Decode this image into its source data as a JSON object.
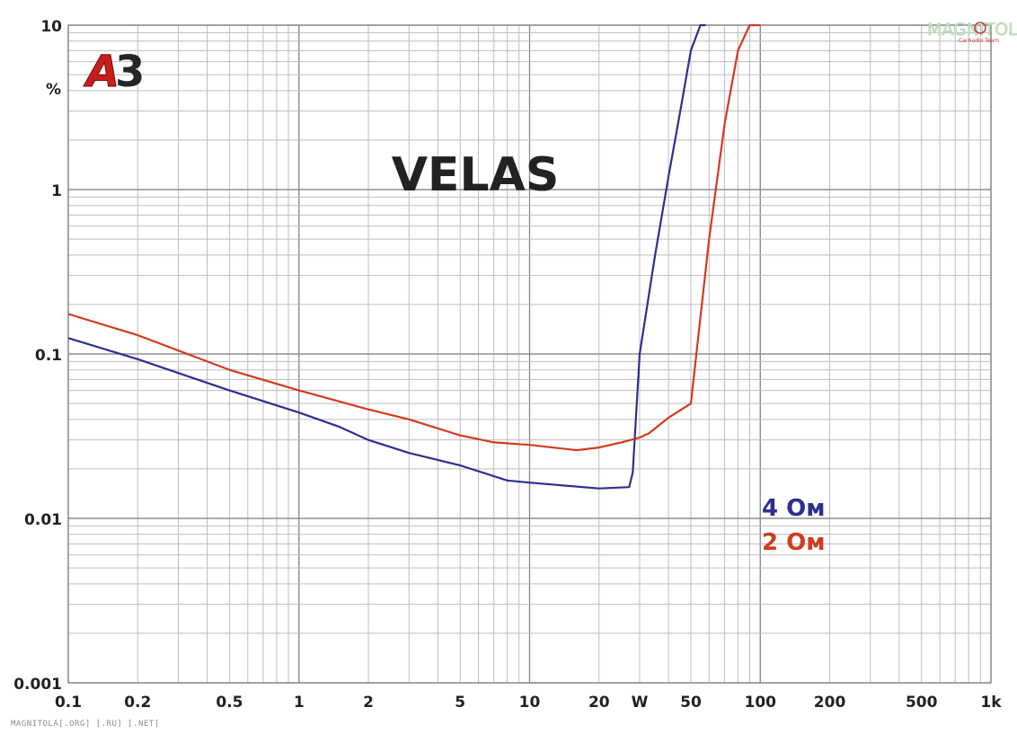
{
  "chart_data": {
    "type": "line",
    "title": "VELAS",
    "x_scale": "log",
    "y_scale": "log",
    "xlim": [
      0.1,
      1000
    ],
    "ylim": [
      0.001,
      10
    ],
    "grid": true,
    "y_unit": "%",
    "badge": "A3",
    "x_ticks": [
      {
        "value": 0.1,
        "label": "0.1"
      },
      {
        "value": 0.2,
        "label": "0.2"
      },
      {
        "value": 0.5,
        "label": "0.5"
      },
      {
        "value": 1,
        "label": "1"
      },
      {
        "value": 2,
        "label": "2"
      },
      {
        "value": 5,
        "label": "5"
      },
      {
        "value": 10,
        "label": "10"
      },
      {
        "value": 20,
        "label": "20"
      },
      {
        "value": 30,
        "label": "W"
      },
      {
        "value": 50,
        "label": "50"
      },
      {
        "value": 100,
        "label": "100"
      },
      {
        "value": 200,
        "label": "200"
      },
      {
        "value": 500,
        "label": "500"
      },
      {
        "value": 1000,
        "label": "1k"
      }
    ],
    "y_ticks": [
      {
        "value": 10,
        "label": "10"
      },
      {
        "value": 1,
        "label": "1"
      },
      {
        "value": 0.1,
        "label": "0.1"
      },
      {
        "value": 0.01,
        "label": "0.01"
      },
      {
        "value": 0.001,
        "label": "0.001"
      }
    ],
    "series": [
      {
        "name": "4 Ом",
        "color": "#2e2f8e",
        "x": [
          0.1,
          0.2,
          0.5,
          1,
          1.5,
          2,
          3,
          5,
          8,
          10,
          20,
          27,
          28,
          30,
          35,
          40,
          45,
          50,
          55,
          58
        ],
        "y": [
          0.125,
          0.093,
          0.06,
          0.044,
          0.036,
          0.03,
          0.025,
          0.021,
          0.017,
          0.0165,
          0.0152,
          0.0155,
          0.019,
          0.1,
          0.4,
          1.2,
          3.0,
          7.0,
          10,
          10
        ]
      },
      {
        "name": "2 Ом",
        "color": "#d23a1e",
        "x": [
          0.1,
          0.2,
          0.5,
          1,
          2,
          3,
          5,
          7,
          10,
          16,
          20,
          25,
          30,
          33,
          40,
          50,
          60,
          70,
          80,
          90,
          100
        ],
        "y": [
          0.175,
          0.13,
          0.08,
          0.06,
          0.046,
          0.04,
          0.032,
          0.029,
          0.028,
          0.026,
          0.027,
          0.029,
          0.031,
          0.033,
          0.041,
          0.05,
          0.5,
          2.5,
          7.0,
          10,
          10
        ]
      }
    ]
  },
  "watermark": {
    "main": "MAGNITOLA",
    "sub": "CarAudio Team"
  },
  "footer": "MAGNITOLA[.ORG] [.RU] [.NET]"
}
